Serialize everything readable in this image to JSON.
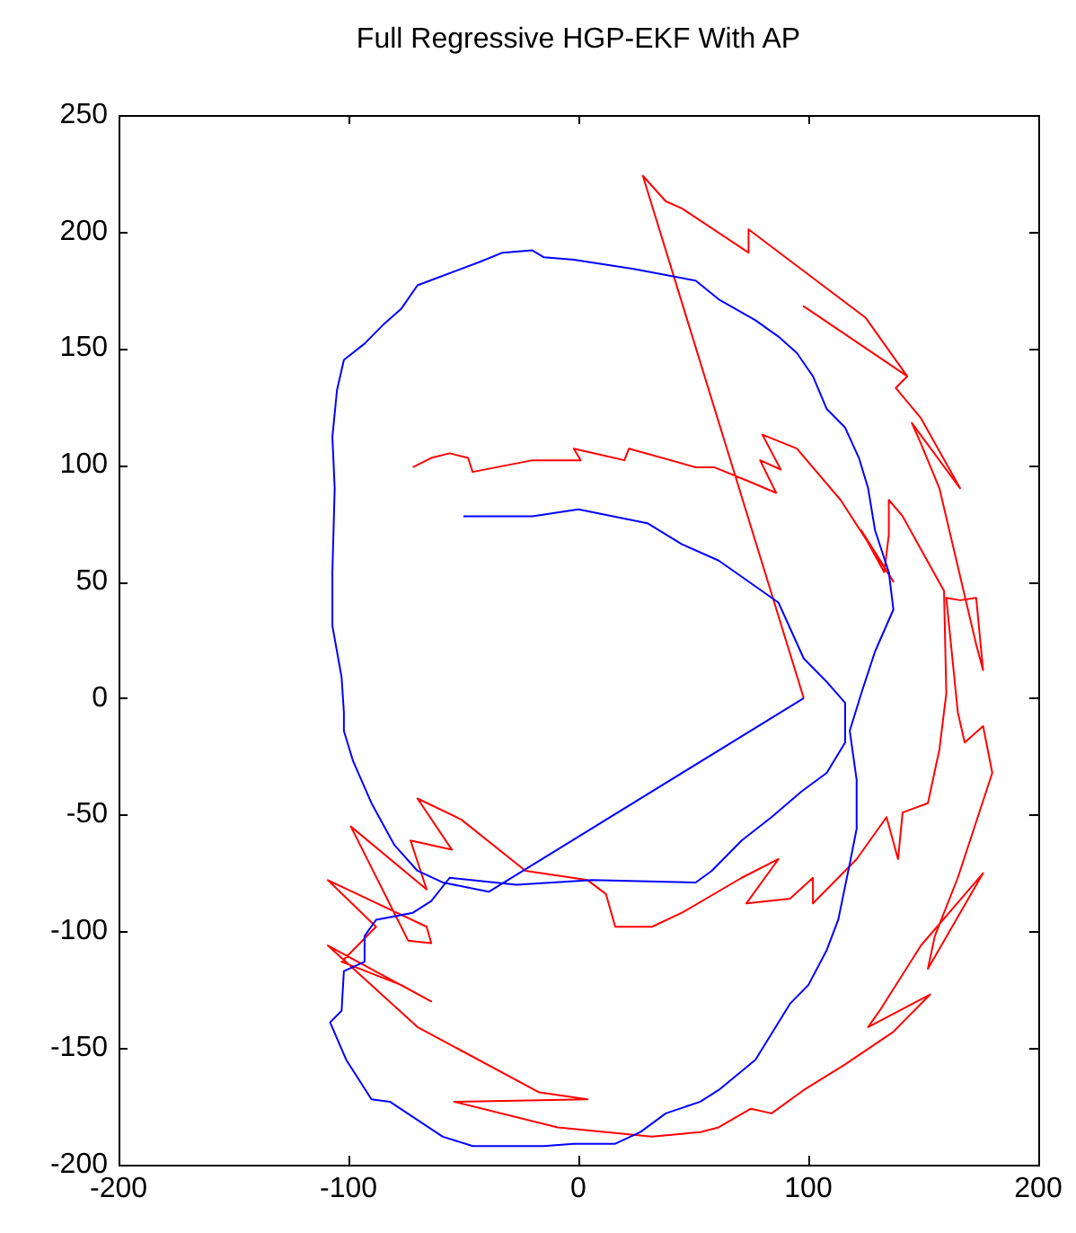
{
  "chart_data": {
    "type": "line",
    "title": "Full Regressive HGP-EKF With AP",
    "xlim": [
      -200,
      200
    ],
    "xticks": [
      -200,
      -100,
      0,
      100,
      200
    ],
    "ylim": [
      -200,
      250
    ],
    "yticks": [
      -200,
      -150,
      -100,
      -50,
      0,
      50,
      100,
      150,
      200,
      250
    ],
    "grid": false,
    "legend": false,
    "marker": "none",
    "line_style": "solid",
    "series": [
      {
        "color": "#0000ff",
        "x": [
          -50,
          -20,
          0,
          30,
          45,
          61,
          87,
          98,
          108,
          116,
          116,
          108,
          97,
          84,
          71,
          58,
          51,
          6,
          -27,
          -56,
          -64,
          -72,
          -88,
          -93,
          -93,
          -102,
          -103,
          -108,
          -101,
          -90,
          -82,
          -59,
          -46,
          -15,
          -2,
          16,
          27,
          38,
          53,
          61,
          77,
          92,
          100,
          108,
          113,
          118,
          121,
          121,
          118,
          123,
          129,
          137,
          135,
          129,
          126,
          122,
          116,
          108,
          102,
          95,
          87,
          77,
          61,
          51,
          24,
          -2,
          -15,
          -20,
          -33,
          -43,
          -62,
          -70,
          -77,
          -85,
          -93,
          -102,
          -105,
          -107,
          -106,
          -107,
          -107,
          -103,
          -102,
          -102,
          -98,
          -90,
          -80,
          -70,
          -59,
          -39,
          98
        ],
        "values": [
          78,
          78,
          81,
          75,
          66,
          59,
          41,
          17,
          7,
          -2,
          -19,
          -32,
          -40,
          -51,
          -61,
          -74,
          -79,
          -78,
          -80,
          -77,
          -87,
          -92,
          -95,
          -102,
          -113,
          -117,
          -134,
          -139,
          -155,
          -172,
          -173,
          -188,
          -192,
          -192,
          -191,
          -191,
          -186,
          -178,
          -173,
          -168,
          -155,
          -131,
          -123,
          -108,
          -95,
          -71,
          -56,
          -35,
          -14,
          2,
          20,
          38,
          54,
          72,
          90,
          103,
          116,
          124,
          138,
          148,
          155,
          162,
          171,
          179,
          184,
          188,
          189,
          192,
          191,
          187,
          180,
          177,
          167,
          160,
          152,
          145,
          132,
          112,
          90,
          54,
          31,
          9,
          -6,
          -14,
          -27,
          -45,
          -63,
          -74,
          -79,
          -83,
          0
        ]
      },
      {
        "color": "#ff0000",
        "x": [
          -72,
          -64,
          -56,
          -48,
          -46,
          -20,
          1,
          -2,
          20,
          22,
          51,
          59,
          74,
          86,
          79,
          88,
          80,
          95,
          114,
          137,
          123,
          133,
          135,
          135,
          141,
          159,
          160,
          157,
          152,
          141,
          139,
          134,
          121,
          102,
          102,
          92,
          73,
          87,
          71,
          45,
          32,
          16,
          12,
          4,
          -23,
          -51,
          -70,
          -55,
          -73,
          -66,
          -99,
          -74,
          -64,
          -66,
          -109,
          -88,
          -103,
          -77,
          -64,
          -109,
          -70,
          -17,
          4,
          -54,
          -9,
          32,
          53,
          61,
          75,
          84,
          98,
          116,
          137,
          153,
          126,
          131,
          149,
          176,
          152,
          155,
          165,
          180,
          176,
          168,
          165,
          160,
          166,
          173,
          176,
          173,
          157,
          149,
          145,
          166,
          149,
          138,
          143,
          131,
          98,
          143,
          125,
          74,
          74,
          45,
          38,
          28,
          98
        ],
        "values": [
          99,
          103,
          105,
          103,
          97,
          102,
          102,
          107,
          102,
          107,
          99,
          99,
          93,
          88,
          102,
          98,
          113,
          107,
          85,
          50,
          72,
          54,
          70,
          85,
          78,
          46,
          2,
          -22,
          -45,
          -49,
          -69,
          -51,
          -69,
          -88,
          -77,
          -86,
          -88,
          -69,
          -77,
          -92,
          -98,
          -98,
          -84,
          -78,
          -74,
          -52,
          -43,
          -65,
          -61,
          -82,
          -55,
          -104,
          -105,
          -98,
          -78,
          -98,
          -113,
          -123,
          -130,
          -106,
          -141,
          -169,
          -172,
          -173,
          -184,
          -188,
          -186,
          -184,
          -176,
          -178,
          -168,
          -157,
          -143,
          -127,
          -141,
          -134,
          -106,
          -75,
          -116,
          -102,
          -77,
          -32,
          -12,
          -19,
          -6,
          43,
          42,
          43,
          12,
          23,
          90,
          109,
          118,
          90,
          120,
          133,
          138,
          146,
          168,
          138,
          163,
          201,
          191,
          210,
          213,
          224,
          0
        ]
      }
    ]
  }
}
